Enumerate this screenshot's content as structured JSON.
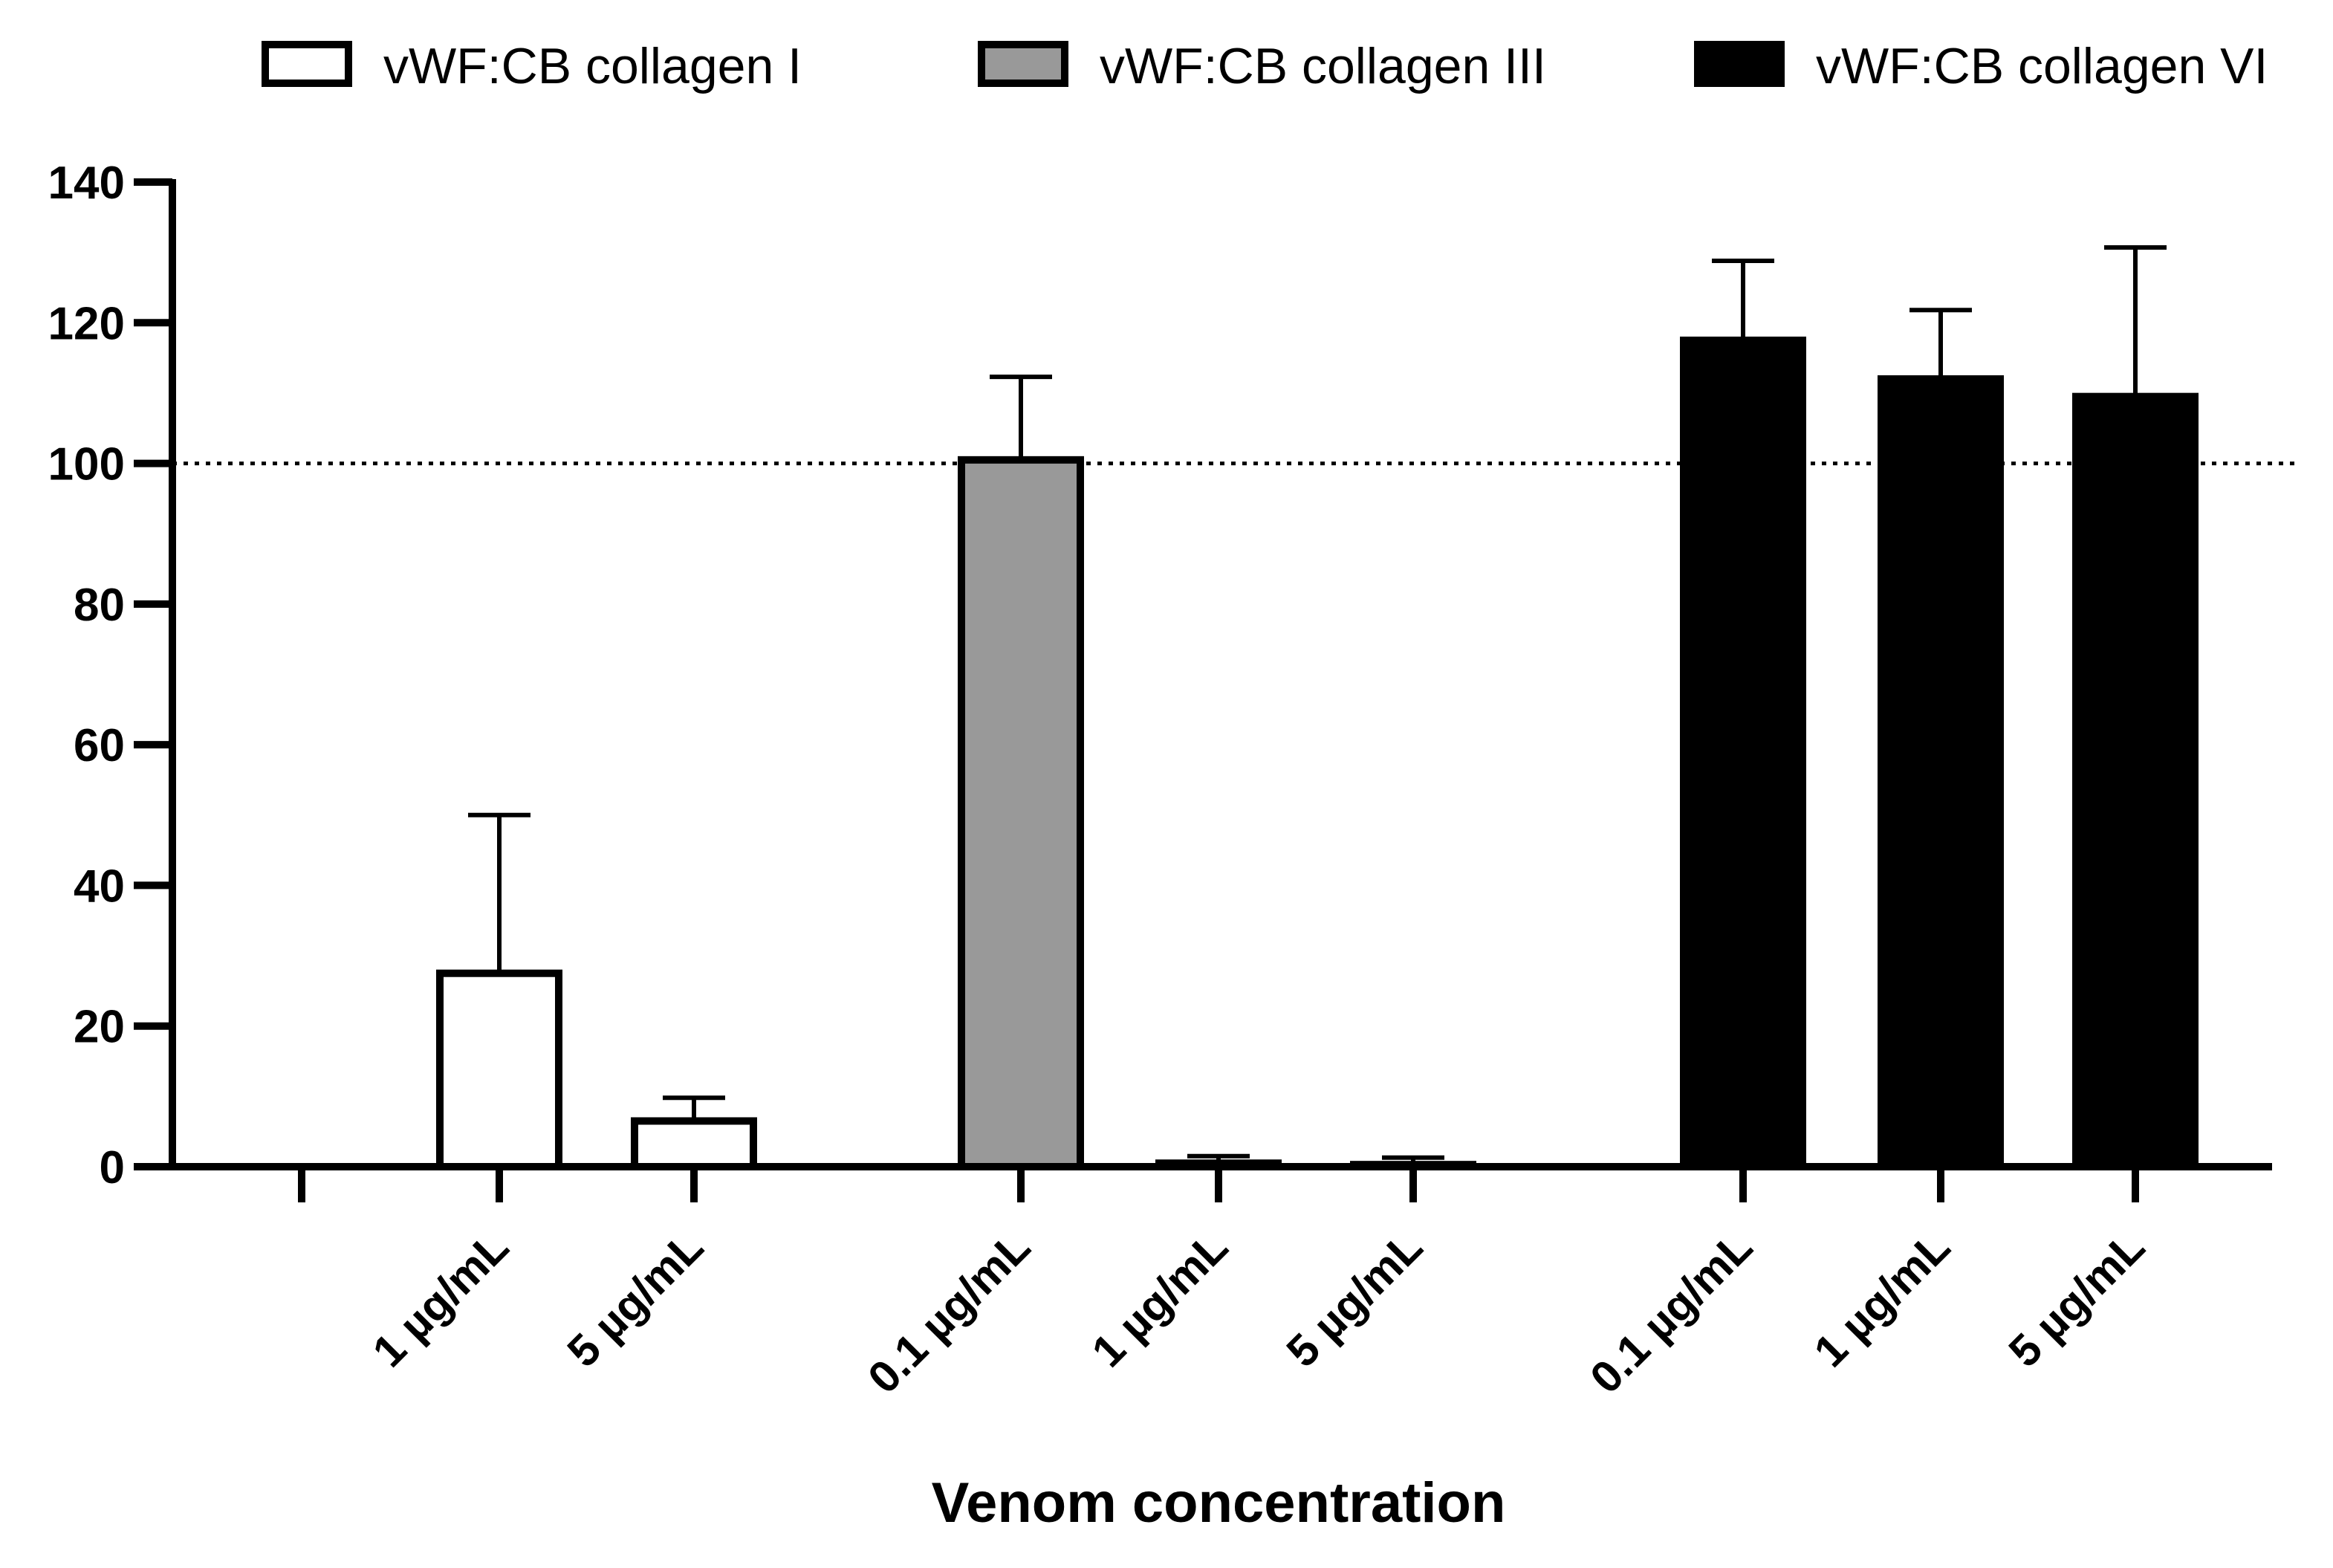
{
  "chart_data": {
    "type": "bar",
    "xlabel": "Venom concentration",
    "ylabel": "",
    "ylim": [
      0,
      140
    ],
    "yticks": [
      0,
      20,
      40,
      60,
      80,
      100,
      120,
      140
    ],
    "reference_line": 100,
    "legend": {
      "placement": "top",
      "entries": [
        {
          "label": "vWF:CB collagen I",
          "color": "#ffffff"
        },
        {
          "label": "vWF:CB collagen III",
          "color": "#999999"
        },
        {
          "label": "vWF:CB collagen VI",
          "color": "#000000"
        }
      ]
    },
    "series": [
      {
        "name": "vWF:CB collagen I",
        "fill": "#ffffff",
        "categories": [
          "",
          "1 µg/mL",
          "5 µg/mL"
        ],
        "values": [
          0,
          27.5,
          6.5
        ],
        "errors": [
          0,
          22.5,
          3.3
        ]
      },
      {
        "name": "vWF:CB collagen III",
        "fill": "#999999",
        "categories": [
          "0.1 µg/mL",
          "1 µg/mL",
          "5 µg/mL"
        ],
        "values": [
          100.5,
          0.5,
          0.3
        ],
        "errors": [
          11.8,
          1.0,
          1.0
        ]
      },
      {
        "name": "vWF:CB collagen VI",
        "fill": "#000000",
        "categories": [
          "0.1 µg/mL",
          "1 µg/mL",
          "5 µg/mL"
        ],
        "values": [
          117.5,
          112,
          109.5
        ],
        "errors": [
          11.3,
          9.8,
          21.2
        ]
      }
    ]
  }
}
